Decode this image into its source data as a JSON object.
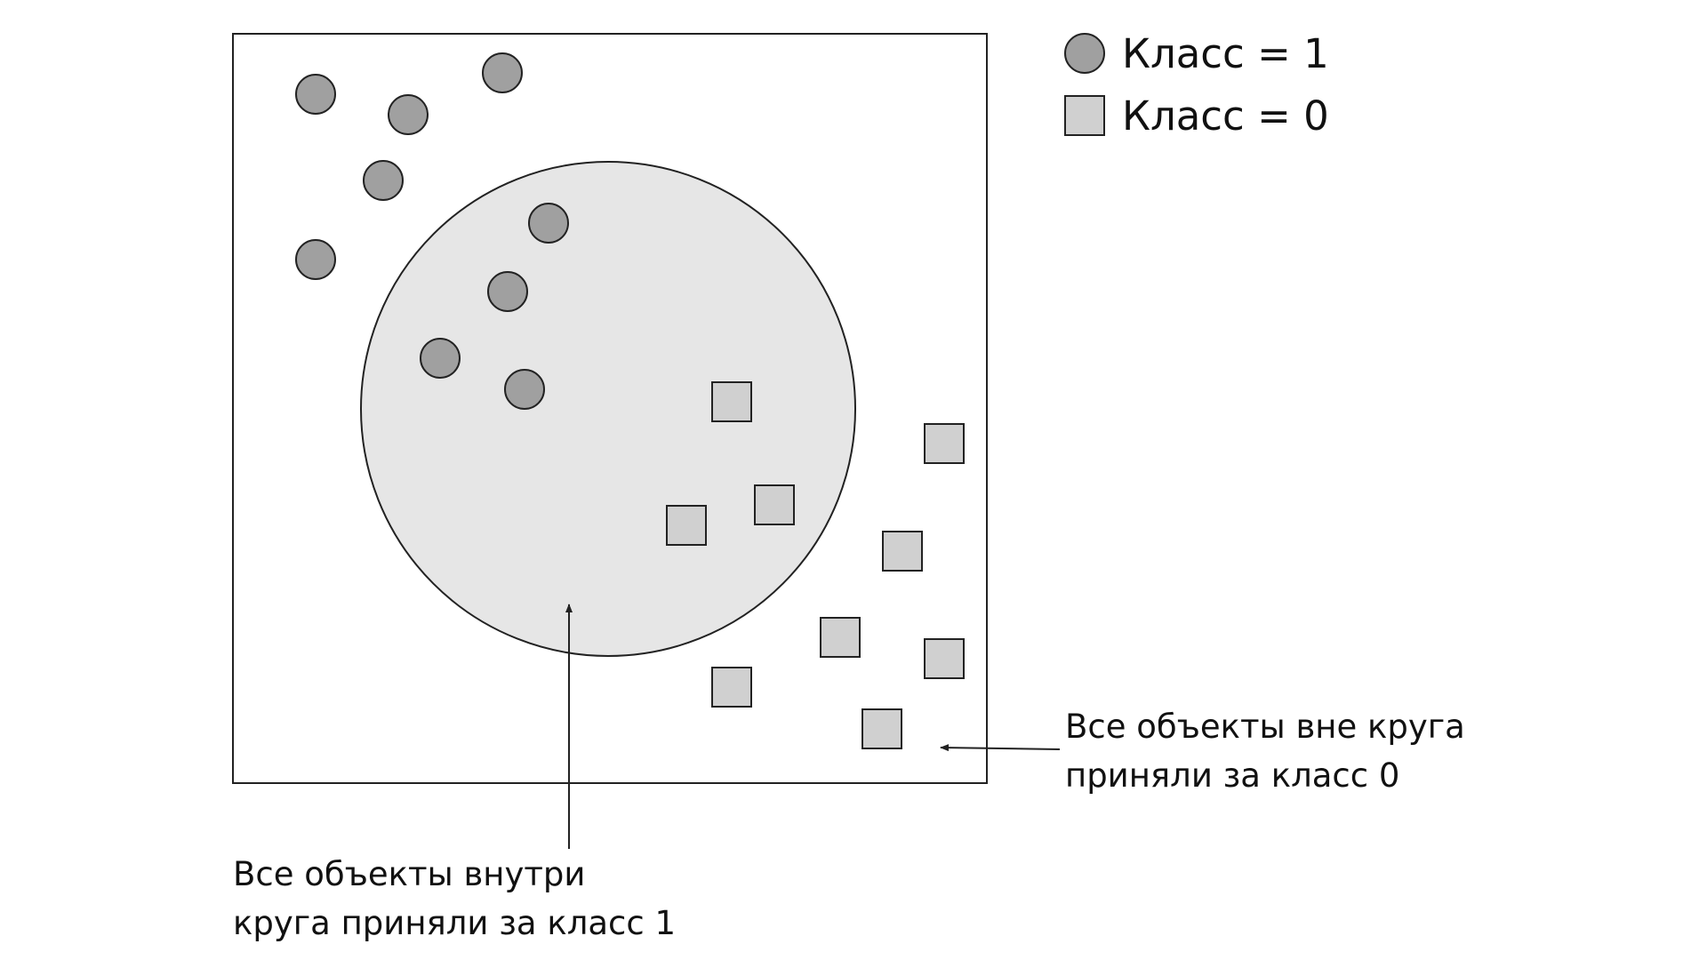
{
  "legend": {
    "class1": {
      "label": "Класс = 1",
      "marker": "circle"
    },
    "class0": {
      "label": "Класс = 0",
      "marker": "square"
    }
  },
  "annotations": {
    "inside": {
      "line1": "Все объекты внутри",
      "line2": "круга приняли за класс 1"
    },
    "outside": {
      "line1": "Все объекты вне круга",
      "line2": "приняли за класс 0"
    }
  },
  "colors": {
    "circle_fill": "#a0a0a0",
    "square_fill": "#d0d0d0",
    "region_fill": "#e6e6e6",
    "stroke": "#222222",
    "background": "#ffffff"
  }
}
